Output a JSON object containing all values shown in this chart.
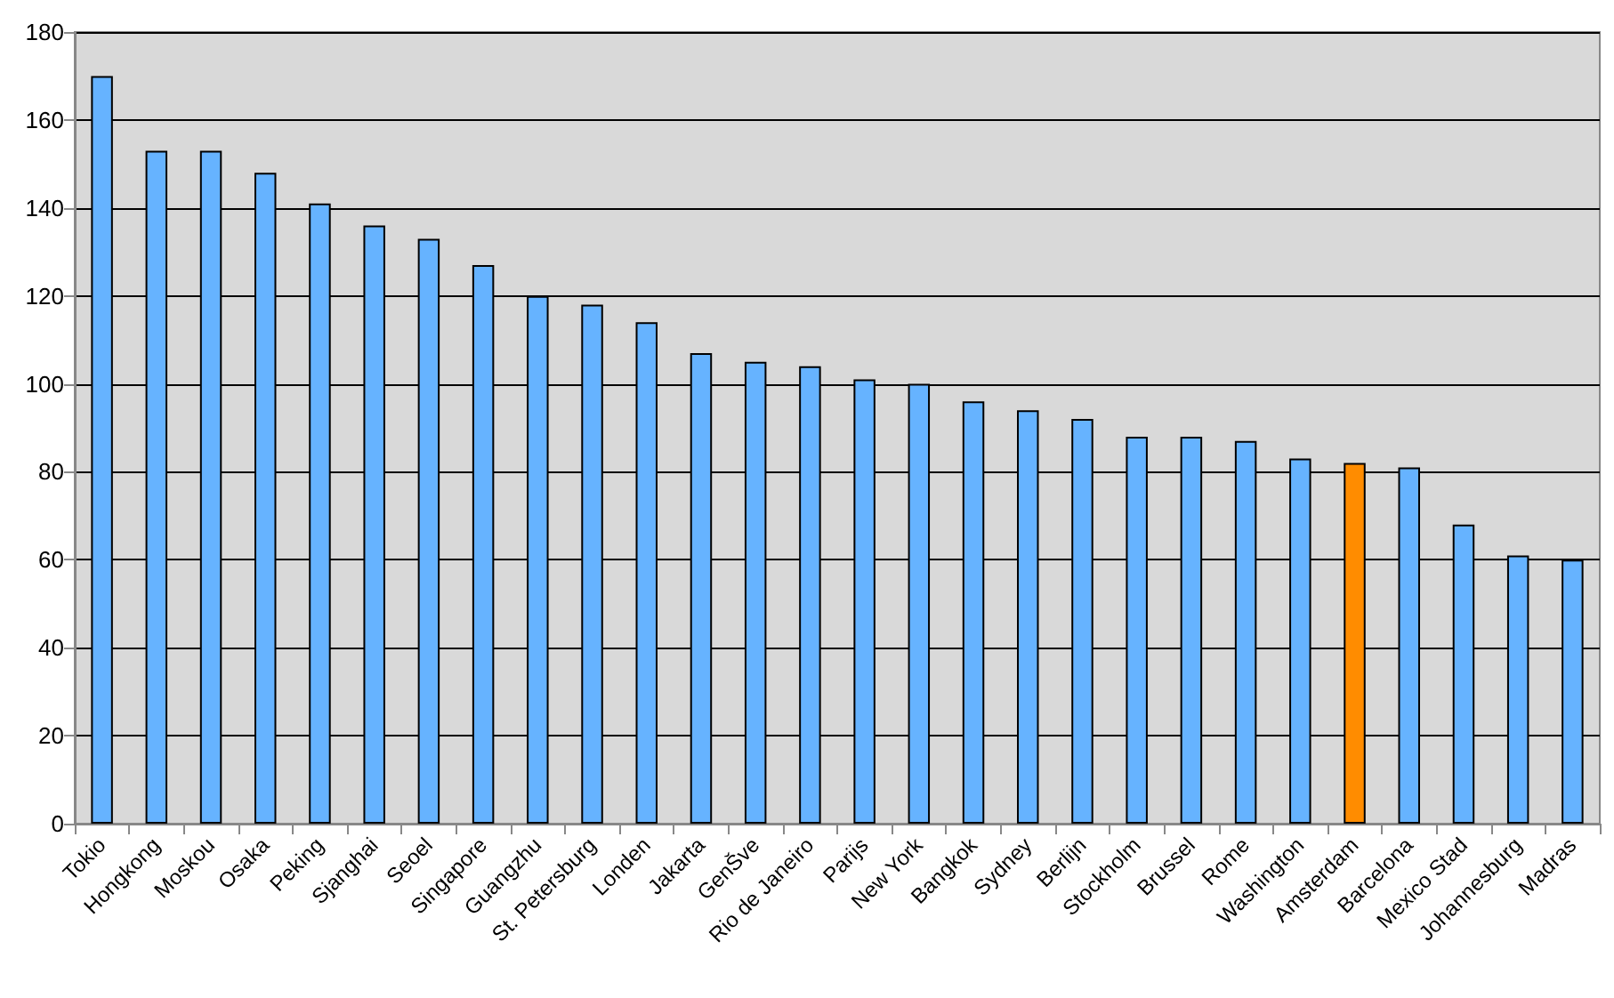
{
  "chart_data": {
    "type": "bar",
    "categories": [
      "Tokio",
      "Hongkong",
      "Moskou",
      "Osaka",
      "Peking",
      "Sjanghai",
      "Seoel",
      "Singapore",
      "Guangzhu",
      "St. Petersburg",
      "Londen",
      "Jakarta",
      "GenŠve",
      "Rio de Janeiro",
      "Parijs",
      "New York",
      "Bangkok",
      "Sydney",
      "Berlijn",
      "Stockholm",
      "Brussel",
      "Rome",
      "Washington",
      "Amsterdam",
      "Barcelona",
      "Mexico Stad",
      "Johannesburg",
      "Madras"
    ],
    "values": [
      170,
      153,
      153,
      148,
      141,
      136,
      133,
      127,
      120,
      118,
      114,
      107,
      105,
      104,
      101,
      100,
      96,
      94,
      92,
      88,
      88,
      87,
      83,
      82,
      81,
      68,
      61,
      60
    ],
    "colors": [
      "#66b3ff",
      "#66b3ff",
      "#66b3ff",
      "#66b3ff",
      "#66b3ff",
      "#66b3ff",
      "#66b3ff",
      "#66b3ff",
      "#66b3ff",
      "#66b3ff",
      "#66b3ff",
      "#66b3ff",
      "#66b3ff",
      "#66b3ff",
      "#66b3ff",
      "#66b3ff",
      "#66b3ff",
      "#66b3ff",
      "#66b3ff",
      "#66b3ff",
      "#66b3ff",
      "#66b3ff",
      "#66b3ff",
      "#ff8c00",
      "#66b3ff",
      "#66b3ff",
      "#66b3ff",
      "#66b3ff"
    ],
    "ylim": [
      0,
      180
    ],
    "yticks": [
      0,
      20,
      40,
      60,
      80,
      100,
      120,
      140,
      160,
      180
    ],
    "grid": "y"
  }
}
